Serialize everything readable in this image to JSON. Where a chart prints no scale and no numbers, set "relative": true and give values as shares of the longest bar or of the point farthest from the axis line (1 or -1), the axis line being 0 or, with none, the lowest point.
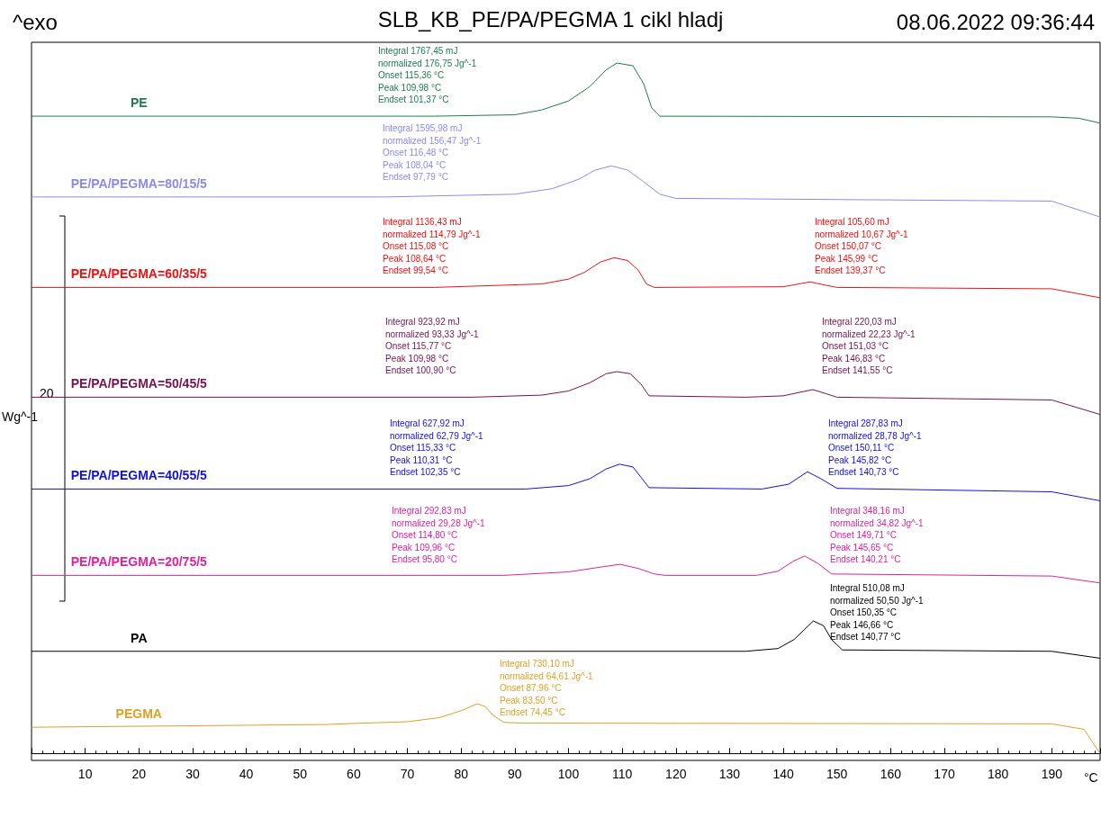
{
  "chart_data": {
    "type": "line",
    "title": "SLB_KB_PE/PA/PEGMA 1 cikl hladj",
    "xlabel": "°C",
    "ylabel": "Wg^-1",
    "relative": true,
    "legend": false,
    "grid": false,
    "marker": "none",
    "line_style": "solid",
    "xlim": [
      0,
      199
    ],
    "xticks": [
      10,
      20,
      30,
      40,
      50,
      60,
      70,
      80,
      90,
      100,
      110,
      120,
      130,
      140,
      150,
      160,
      170,
      180,
      190
    ],
    "annotations": [
      "^exo",
      "08.06.2022 09:36:44",
      "20",
      "Integral 1767,45 mJ\nnormalized 176,75 Jg^-1\nOnset 115,36 °C\nPeak 109,98 °C\nEndset 101,37 °C",
      "Integral 1595,98 mJ\nnormalized 156,47 Jg^-1\nOnset 116,48 °C\nPeak 108,04 °C\nEndset 97,79 °C",
      "Integral 1136,43 mJ\nnormalized 114,79 Jg^-1\nOnset 115,08 °C\nPeak 108,64 °C\nEndset 99,54 °C",
      "Integral 105,60 mJ\nnormalized 10,67 Jg^-1\nOnset 150,07 °C\nPeak 145,99 °C\nEndset 139,37 °C",
      "Integral 923,92 mJ\nnormalized 93,33 Jg^-1\nOnset 115,77 °C\nPeak 109,98 °C\nEndset 100,90 °C",
      "Integral 220,03 mJ\nnormalized 22,23 Jg^-1\nOnset 151,03 °C\nPeak 146,83 °C\nEndset 141,55 °C",
      "Integral 627,92 mJ\nnormalized 62,79 Jg^-1\nOnset 115,33 °C\nPeak 110,31 °C\nEndset 102,35 °C",
      "Integral 287,83 mJ\nnormalized 28,78 Jg^-1\nOnset 150,11 °C\nPeak 145,82 °C\nEndset 140,73 °C",
      "Integral 292,83 mJ\nnormalized 29,28 Jg^-1\nOnset 114,80 °C\nPeak 109,96 °C\nEndset 95,80 °C",
      "Integral 348,16 mJ\nnormalized 34,82 Jg^-1\nOnset 149,71 °C\nPeak 145,65 °C\nEndset 140,21 °C",
      "Integral 510,08 mJ\nnormalized 50,50 Jg^-1\nOnset 150,35 °C\nPeak 146,66 °C\nEndset 140,77 °C",
      "Integral 730,10 mJ\nnormalized 64,61 Jg^-1\nOnset 87,96 °C\nPeak 83,50 °C\nEndset 74,45 °C"
    ],
    "series": [
      {
        "name": "PE",
        "color": "#1f7a4f",
        "x": [
          0,
          75,
          90,
          95,
          100,
          104,
          107,
          109,
          112,
          114,
          115.5,
          117,
          190,
          195,
          199
        ],
        "values": [
          0.923,
          0.923,
          0.925,
          0.932,
          0.945,
          0.966,
          0.99,
          1.0,
          0.996,
          0.97,
          0.935,
          0.923,
          0.922,
          0.92,
          0.913
        ]
      },
      {
        "name": "PE/PA/PEGMA=80/15/5",
        "color": "#8a8aee",
        "x": [
          0,
          66,
          90,
          97,
          102,
          105,
          108,
          111,
          114,
          117,
          120,
          190,
          199
        ],
        "values": [
          0.806,
          0.806,
          0.81,
          0.818,
          0.832,
          0.845,
          0.851,
          0.845,
          0.828,
          0.81,
          0.804,
          0.8,
          0.777
        ]
      },
      {
        "name": "PE/PA/PEGMA=60/35/5",
        "color": "#f01010",
        "x": [
          0,
          75,
          95,
          100,
          103,
          106,
          108.5,
          111,
          113,
          114.5,
          116,
          140,
          145,
          148,
          150,
          190,
          199
        ],
        "values": [
          0.675,
          0.675,
          0.68,
          0.687,
          0.697,
          0.712,
          0.718,
          0.714,
          0.7,
          0.68,
          0.675,
          0.676,
          0.683,
          0.678,
          0.675,
          0.673,
          0.66
        ]
      },
      {
        "name": "PE/PA/PEGMA=50/45/5",
        "color": "#7a1050",
        "x": [
          0,
          82,
          95,
          100,
          104,
          107,
          109,
          111.5,
          113.5,
          115,
          133,
          140,
          143,
          145.5,
          148,
          150,
          190,
          199
        ],
        "values": [
          0.516,
          0.516,
          0.519,
          0.525,
          0.537,
          0.55,
          0.553,
          0.55,
          0.535,
          0.518,
          0.516,
          0.518,
          0.523,
          0.527,
          0.521,
          0.516,
          0.512,
          0.491
        ]
      },
      {
        "name": "PE/PA/PEGMA=40/55/5",
        "color": "#1010e0",
        "x": [
          0,
          92,
          100,
          104,
          107,
          109.5,
          112,
          113.5,
          115,
          136,
          141,
          144.5,
          147,
          150,
          190,
          199
        ],
        "values": [
          0.383,
          0.383,
          0.388,
          0.398,
          0.412,
          0.419,
          0.415,
          0.4,
          0.385,
          0.383,
          0.39,
          0.408,
          0.398,
          0.384,
          0.379,
          0.366
        ]
      },
      {
        "name": "PE/PA/PEGMA=20/75/5",
        "color": "#e020a0",
        "x": [
          0,
          88,
          100,
          106,
          109.6,
          113,
          116,
          118,
          135,
          139,
          142,
          144,
          146.5,
          149,
          190,
          199
        ],
        "values": [
          0.258,
          0.258,
          0.263,
          0.27,
          0.274,
          0.268,
          0.26,
          0.258,
          0.258,
          0.264,
          0.279,
          0.286,
          0.275,
          0.26,
          0.257,
          0.247
        ]
      },
      {
        "name": "PA",
        "color": "#000000",
        "x": [
          0,
          133,
          139,
          142,
          144,
          145.6,
          147.5,
          149,
          151,
          190,
          199
        ],
        "values": [
          0.148,
          0.148,
          0.152,
          0.165,
          0.18,
          0.192,
          0.185,
          0.165,
          0.15,
          0.148,
          0.138
        ]
      },
      {
        "name": "PEGMA",
        "color": "#e0a020",
        "x": [
          0,
          55,
          58,
          70,
          76,
          80,
          83,
          84.5,
          86,
          88,
          92,
          190,
          196,
          199
        ],
        "values": [
          0.038,
          0.042,
          0.043,
          0.046,
          0.052,
          0.062,
          0.072,
          0.068,
          0.055,
          0.045,
          0.044,
          0.043,
          0.035,
          0.0
        ]
      }
    ]
  }
}
